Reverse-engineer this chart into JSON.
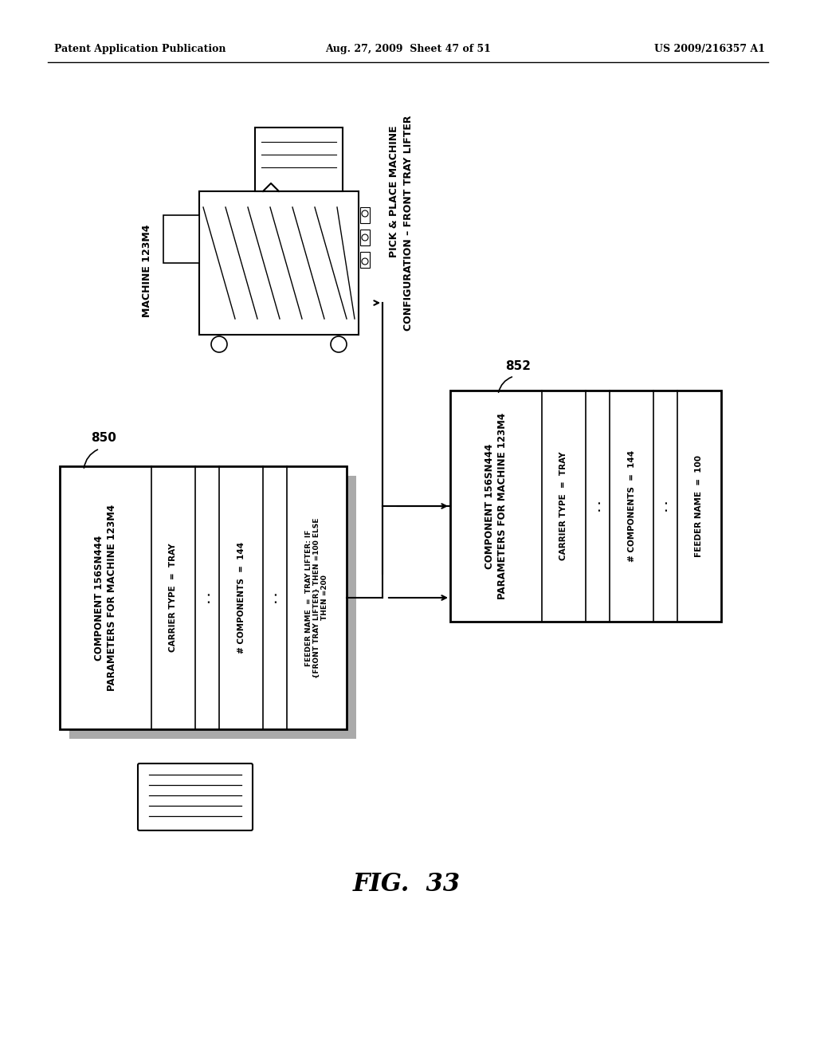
{
  "bg_color": "#ffffff",
  "header_left": "Patent Application Publication",
  "header_center": "Aug. 27, 2009  Sheet 47 of 51",
  "header_right": "US 2009/216357 A1",
  "fig_label": "FIG.  33",
  "machine_label": "MACHINE 123M4",
  "label_850": "850",
  "label_852": "852",
  "config_line1": "PICK & PLACE MACHINE",
  "config_line2": "CONFIGURATION – FRONT TRAY LIFTER",
  "box850_header1": "COMPONENT 156SN444",
  "box850_header2": "PARAMETERS FOR MACHINE 123M4",
  "box850_col1": "CARRIER TYPE  =  TRAY",
  "box850_col2": "•     •",
  "box850_col3": "# COMPONENTS  =  144",
  "box850_col4": "•     •",
  "box850_col5a": "FEEDER NAME  =  TRAY LIFTER: IF",
  "box850_col5b": "{FRONT TRAY LIFTER} THEN =100 ELSE",
  "box850_col5c": "THEN =200",
  "box852_header1": "COMPONENT 156SN444",
  "box852_header2": "PARAMETERS FOR MACHINE 123M4",
  "box852_col1": "CARRIER TYPE  =  TRAY",
  "box852_col2": "•     •",
  "box852_col3": "# COMPONENTS  =  144",
  "box852_col4": "•     •",
  "box852_col5": "FEEDER NAME  =  100"
}
